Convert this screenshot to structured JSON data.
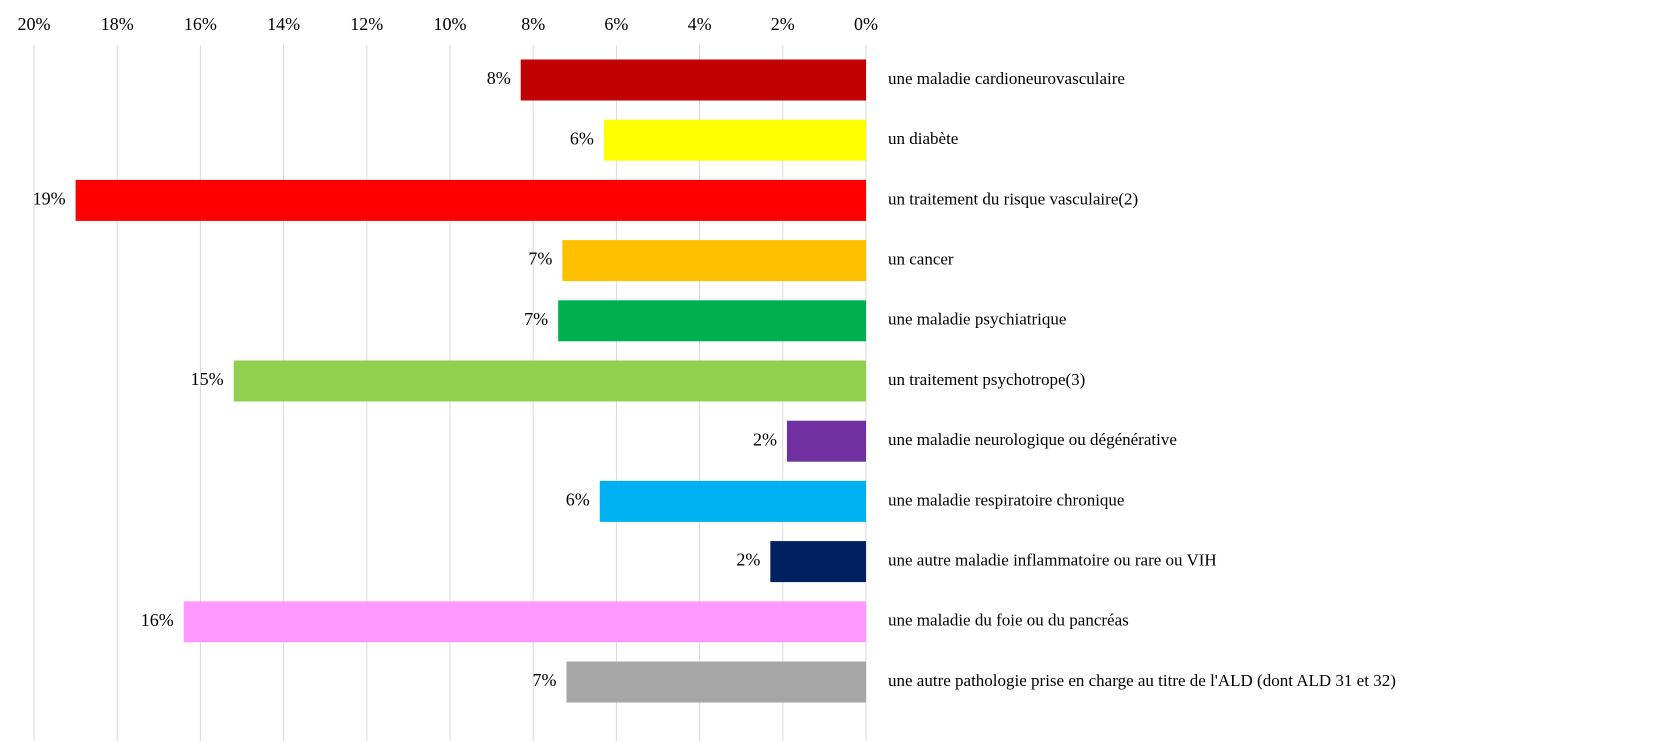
{
  "chart_data": {
    "type": "hbar",
    "categories": [
      "une maladie cardioneurovasculaire",
      "un diabète",
      "un traitement du risque vasculaire(2)",
      "un cancer",
      "une maladie psychiatrique",
      "un traitement psychotrope(3)",
      "une maladie neurologique ou dégénérative",
      "une maladie respiratoire chronique",
      "une autre maladie inflammatoire ou rare ou VIH",
      "une maladie du foie ou du pancréas",
      "une autre pathologie prise en charge au titre de l'ALD (dont ALD 31 et 32)"
    ],
    "values": [
      8.3,
      6.3,
      19.0,
      7.3,
      7.4,
      15.2,
      1.9,
      6.4,
      2.3,
      16.4,
      7.2
    ],
    "value_labels": [
      "8%",
      "6%",
      "19%",
      "7%",
      "7%",
      "15%",
      "2%",
      "6%",
      "2%",
      "16%",
      "7%"
    ],
    "colors": [
      "#c00000",
      "#ffff00",
      "#ff0000",
      "#ffc000",
      "#00b050",
      "#92d050",
      "#7030a0",
      "#00b0f0",
      "#002060",
      "#ff99ff",
      "#a6a6a6"
    ],
    "xlim": [
      20,
      0
    ],
    "xticks": [
      {
        "value": 20,
        "label": "20%"
      },
      {
        "value": 18,
        "label": "18%"
      },
      {
        "value": 16,
        "label": "16%"
      },
      {
        "value": 14,
        "label": "14%"
      },
      {
        "value": 12,
        "label": "12%"
      },
      {
        "value": 10,
        "label": "10%"
      },
      {
        "value": 8,
        "label": "8%"
      },
      {
        "value": 6,
        "label": "6%"
      },
      {
        "value": 4,
        "label": "4%"
      },
      {
        "value": 2,
        "label": "2%"
      },
      {
        "value": 0,
        "label": "0%"
      }
    ],
    "grid": true
  }
}
